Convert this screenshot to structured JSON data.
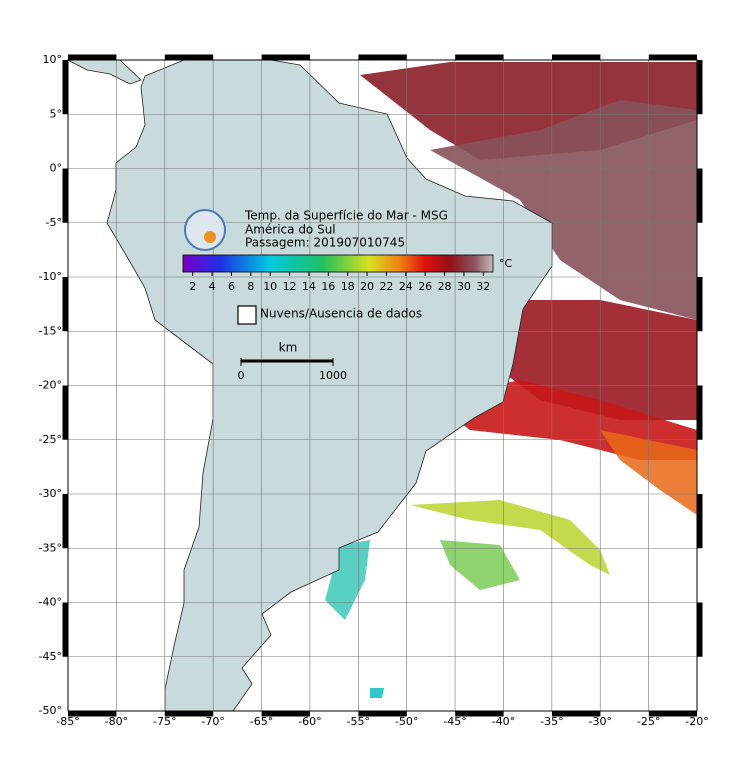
{
  "map": {
    "lat_ticks": [
      {
        "value": 10,
        "label": "10°"
      },
      {
        "value": 5,
        "label": "5°"
      },
      {
        "value": 0,
        "label": "0°"
      },
      {
        "value": -5,
        "label": "-5°"
      },
      {
        "value": -10,
        "label": "-10°"
      },
      {
        "value": -15,
        "label": "-15°"
      },
      {
        "value": -20,
        "label": "-20°"
      },
      {
        "value": -25,
        "label": "-25°"
      },
      {
        "value": -30,
        "label": "-30°"
      },
      {
        "value": -35,
        "label": "-35°"
      },
      {
        "value": -40,
        "label": "-40°"
      },
      {
        "value": -45,
        "label": "-45°"
      },
      {
        "value": -50,
        "label": "-50°"
      }
    ],
    "lon_ticks": [
      {
        "value": -85,
        "label": "-85°"
      },
      {
        "value": -80,
        "label": "-80°"
      },
      {
        "value": -75,
        "label": "-75°"
      },
      {
        "value": -70,
        "label": "-70°"
      },
      {
        "value": -65,
        "label": "-65°"
      },
      {
        "value": -60,
        "label": "-60°"
      },
      {
        "value": -55,
        "label": "-55°"
      },
      {
        "value": -50,
        "label": "-50°"
      },
      {
        "value": -45,
        "label": "-45°"
      },
      {
        "value": -40,
        "label": "-40°"
      },
      {
        "value": -35,
        "label": "-35°"
      },
      {
        "value": -30,
        "label": "-30°"
      },
      {
        "value": -25,
        "label": "-25°"
      },
      {
        "value": -20,
        "label": "-20°"
      }
    ],
    "lat_range": [
      10,
      -50
    ],
    "lon_range": [
      -85,
      -20
    ],
    "legend": {
      "title_lines": [
        "Temp. da Superfície do Mar - MSG",
        "América do Sul",
        "Passagem: 201907010745"
      ],
      "colorbar": {
        "range": [
          1,
          33
        ],
        "ticks": [
          2,
          4,
          6,
          8,
          10,
          12,
          14,
          16,
          18,
          20,
          22,
          24,
          26,
          28,
          30,
          32
        ],
        "unit": "°C"
      },
      "no_data": "Nuvens/Ausencia de dados",
      "scale_bar": {
        "unit": "km",
        "ticks": [
          0,
          1000
        ]
      }
    }
  }
}
